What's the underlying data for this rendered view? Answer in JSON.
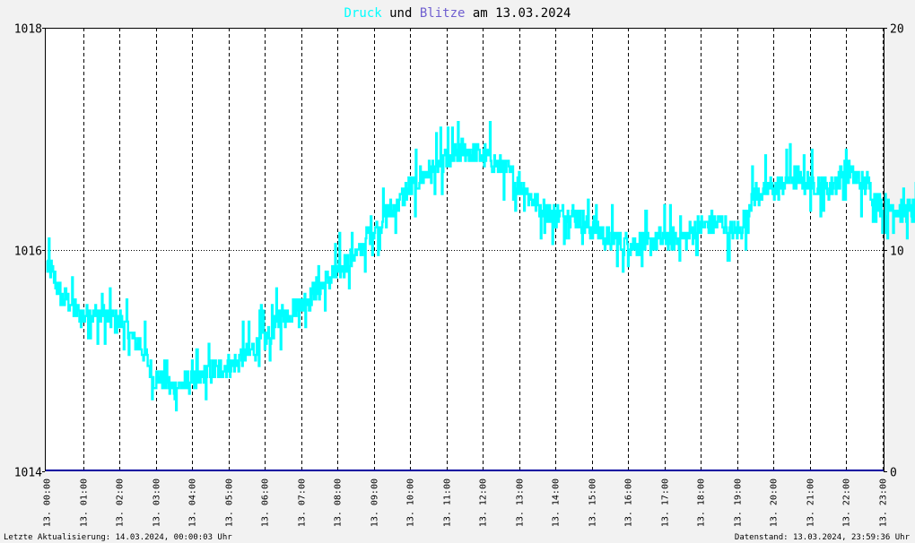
{
  "title": {
    "part1": "Druck",
    "part2": " und ",
    "part3": "Blitze",
    "part4": " am 13.03.2024"
  },
  "footer": {
    "left": "Letzte Aktualisierung: 14.03.2024, 00:00:03 Uhr",
    "right": "Datenstand: 13.03.2024, 23:59:36 Uhr"
  },
  "colors": {
    "pressure": "#00ffff",
    "lightning": "#0000a0",
    "title_blitze": "#6f5fd0",
    "axis": "#000000",
    "background": "#f2f2f2",
    "plot_bg": "#ffffff"
  },
  "chart_data": {
    "type": "line",
    "title": "Druck und Blitze am 13.03.2024",
    "y_left": {
      "ylim": [
        1014,
        1018
      ],
      "ticks": [
        "1014",
        "1016",
        "1018"
      ]
    },
    "y_right": {
      "ylim": [
        0,
        20
      ],
      "ticks": [
        "0",
        "10",
        "20"
      ]
    },
    "x_ticks": [
      "13. 00:00",
      "13. 01:00",
      "13. 02:00",
      "13. 03:00",
      "13. 04:00",
      "13. 05:00",
      "13. 06:00",
      "13. 07:00",
      "13. 08:00",
      "13. 09:00",
      "13. 10:00",
      "13. 11:00",
      "13. 12:00",
      "13. 13:00",
      "13. 14:00",
      "13. 15:00",
      "13. 16:00",
      "13. 17:00",
      "13. 18:00",
      "13. 19:00",
      "13. 20:00",
      "13. 21:00",
      "13. 22:00",
      "13. 23:00"
    ],
    "series": [
      {
        "name": "Druck",
        "axis": "left",
        "x_hours": [
          0.0,
          0.5,
          1.0,
          1.5,
          2.0,
          2.5,
          3.0,
          3.5,
          4.0,
          4.5,
          5.0,
          5.5,
          6.0,
          6.5,
          7.0,
          7.5,
          8.0,
          8.5,
          9.0,
          9.5,
          10.0,
          10.5,
          11.0,
          11.5,
          12.0,
          12.5,
          13.0,
          13.5,
          14.0,
          14.5,
          15.0,
          15.5,
          16.0,
          16.5,
          17.0,
          17.5,
          18.0,
          18.5,
          19.0,
          19.5,
          20.0,
          20.5,
          21.0,
          21.5,
          22.0,
          22.5,
          23.0,
          23.5,
          23.98
        ],
        "values": [
          1015.85,
          1015.55,
          1015.4,
          1015.4,
          1015.35,
          1015.15,
          1014.85,
          1014.75,
          1014.8,
          1014.9,
          1014.95,
          1015.05,
          1015.2,
          1015.4,
          1015.5,
          1015.65,
          1015.8,
          1015.95,
          1016.2,
          1016.35,
          1016.55,
          1016.7,
          1016.8,
          1016.9,
          1016.85,
          1016.75,
          1016.6,
          1016.4,
          1016.3,
          1016.3,
          1016.2,
          1016.1,
          1016.05,
          1016.05,
          1016.1,
          1016.1,
          1016.2,
          1016.25,
          1016.15,
          1016.5,
          1016.55,
          1016.65,
          1016.6,
          1016.55,
          1016.7,
          1016.6,
          1016.4,
          1016.35,
          1016.35
        ]
      },
      {
        "name": "Blitze",
        "axis": "right",
        "x_hours": [
          0,
          24
        ],
        "values": [
          0,
          0
        ]
      }
    ],
    "grid": true
  }
}
